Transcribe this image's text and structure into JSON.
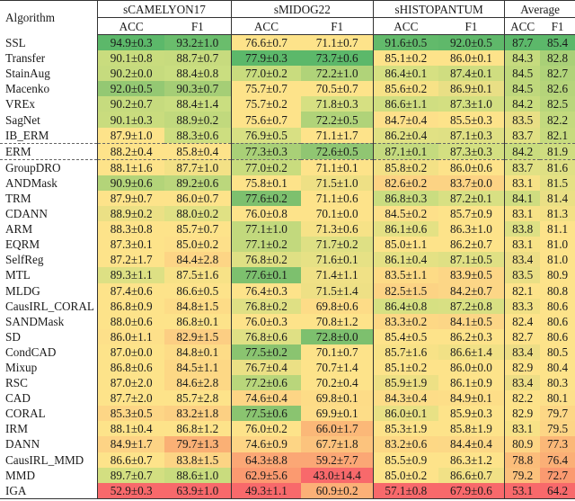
{
  "table": {
    "header": {
      "algorithm": "Algorithm",
      "groups": [
        "sCAMELYON17",
        "sMIDOG22",
        "sHISTOPANTUM",
        "Average"
      ],
      "sub": [
        "ACC",
        "F1",
        "ACC",
        "F1",
        "ACC",
        "F1",
        "ACC",
        "F1"
      ]
    },
    "rows": [
      {
        "name": "SSL",
        "cells": [
          "94.9±0.3",
          "93.2±1.0",
          "76.6±0.7",
          "71.1±0.7",
          "91.6±0.5",
          "92.0±0.5",
          "87.7",
          "85.4"
        ],
        "colors": [
          "#5cb86a",
          "#6abd6c",
          "#fde38a",
          "#fde38a",
          "#62ba6b",
          "#5fb86a",
          "#5cb86a",
          "#5cb86a"
        ]
      },
      {
        "name": "Transfer",
        "cells": [
          "90.1±0.8",
          "88.7±0.7",
          "77.9±0.3",
          "73.7±0.6",
          "85.1±0.2",
          "86.0±0.1",
          "84.3",
          "82.8"
        ],
        "colors": [
          "#c9dc7e",
          "#c7db7e",
          "#5cb86a",
          "#5cb86a",
          "#fde38a",
          "#fde38a",
          "#c6db7e",
          "#a9d077"
        ]
      },
      {
        "name": "StainAug",
        "cells": [
          "90.2±0.0",
          "88.4±0.8",
          "77.0±0.2",
          "72.2±1.0",
          "86.4±0.1",
          "87.4±0.1",
          "84.5",
          "82.7"
        ],
        "colors": [
          "#c6db7e",
          "#cade80",
          "#c9dc7e",
          "#b0d379",
          "#d6e082",
          "#cfdd80",
          "#bfd87c",
          "#b0d379"
        ]
      },
      {
        "name": "Macenko",
        "cells": [
          "92.0±0.5",
          "90.3±0.7",
          "75.7±0.7",
          "70.5±0.7",
          "85.6±0.2",
          "86.9±0.1",
          "84.5",
          "82.6"
        ],
        "colors": [
          "#94c873",
          "#a5ce76",
          "#fde38a",
          "#fde38a",
          "#f7e287",
          "#e9df85",
          "#bfd87c",
          "#b5d47a"
        ]
      },
      {
        "name": "VREx",
        "cells": [
          "90.2±0.7",
          "88.4±1.4",
          "75.7±0.2",
          "71.8±0.3",
          "86.6±1.1",
          "87.3±1.0",
          "84.2",
          "82.5"
        ],
        "colors": [
          "#c6db7e",
          "#cade80",
          "#fde38a",
          "#d6e082",
          "#d0de81",
          "#d3df81",
          "#c9dc7e",
          "#b9d67b"
        ]
      },
      {
        "name": "SagNet",
        "cells": [
          "90.1±0.3",
          "88.9±0.2",
          "75.6±0.7",
          "72.2±0.5",
          "84.7±0.4",
          "85.5±0.3",
          "83.5",
          "82.2"
        ],
        "colors": [
          "#c9dc7e",
          "#c1d97d",
          "#fde38a",
          "#b0d379",
          "#fde08a",
          "#fde38a",
          "#e9df85",
          "#c3da7e"
        ]
      },
      {
        "name": "IB_ERM",
        "cells": [
          "87.9±1.0",
          "88.3±0.6",
          "76.9±0.5",
          "71.1±1.7",
          "86.2±0.4",
          "87.1±0.3",
          "83.7",
          "82.1"
        ],
        "colors": [
          "#fde38a",
          "#cdde80",
          "#d8e083",
          "#fde38a",
          "#e1e184",
          "#dfe084",
          "#e1e184",
          "#c7db7e"
        ]
      },
      {
        "name": "ERM",
        "cells": [
          "88.2±0.4",
          "85.8±0.4",
          "77.3±0.3",
          "72.6±0.5",
          "87.1±0.1",
          "87.3±0.3",
          "84.2",
          "81.9"
        ],
        "colors": [
          "#fde38a",
          "#fde38a",
          "#a9d077",
          "#90c672",
          "#c4da7e",
          "#d3df81",
          "#c9dc7e",
          "#cfdd80"
        ]
      },
      {
        "name": "GroupDRO",
        "cells": [
          "88.1±1.6",
          "87.7±1.0",
          "77.0±0.2",
          "71.1±0.1",
          "85.8±0.2",
          "86.0±0.6",
          "83.7",
          "81.6"
        ],
        "colors": [
          "#fde38a",
          "#f3e186",
          "#c9dc7e",
          "#fde38a",
          "#f3e186",
          "#fde38a",
          "#e1e184",
          "#dfe084"
        ]
      },
      {
        "name": "ANDMask",
        "cells": [
          "90.9±0.6",
          "89.2±0.6",
          "75.8±0.1",
          "71.5±1.0",
          "82.6±0.2",
          "83.7±0.0",
          "83.1",
          "81.5"
        ],
        "colors": [
          "#b3d479",
          "#bbd77c",
          "#fde38a",
          "#eee085",
          "#fcd384",
          "#fcd384",
          "#f7e287",
          "#e5e184"
        ]
      },
      {
        "name": "TRM",
        "cells": [
          "87.9±0.7",
          "86.0±0.7",
          "77.6±0.2",
          "71.1±0.6",
          "86.8±0.3",
          "87.2±0.1",
          "84.1",
          "81.4"
        ],
        "colors": [
          "#fde38a",
          "#fde38a",
          "#7dc06e",
          "#fde38a",
          "#cadd80",
          "#d8e083",
          "#cfdd80",
          "#eae085"
        ]
      },
      {
        "name": "CDANN",
        "cells": [
          "88.9±0.2",
          "88.0±0.2",
          "76.0±0.8",
          "70.1±0.0",
          "84.5±0.2",
          "85.7±0.9",
          "83.1",
          "81.3"
        ],
        "colors": [
          "#ebe085",
          "#e0e184",
          "#fde38a",
          "#fde38a",
          "#fde08a",
          "#fde38a",
          "#f7e287",
          "#f3e186"
        ]
      },
      {
        "name": "ARM",
        "cells": [
          "88.3±0.8",
          "85.7±0.7",
          "77.1±1.0",
          "71.3±0.6",
          "86.1±0.6",
          "86.3±1.0",
          "83.8",
          "81.1"
        ],
        "colors": [
          "#fde38a",
          "#fde38a",
          "#c2d97d",
          "#f6e287",
          "#e4e184",
          "#fde38a",
          "#dde084",
          "#fde38a"
        ]
      },
      {
        "name": "EQRM",
        "cells": [
          "87.3±0.1",
          "85.0±0.2",
          "77.1±0.2",
          "71.7±0.2",
          "85.0±1.1",
          "86.2±0.7",
          "83.1",
          "81.0"
        ],
        "colors": [
          "#fde38a",
          "#fde08a",
          "#c2d97d",
          "#dee084",
          "#fde38a",
          "#fde38a",
          "#f7e287",
          "#fde38a"
        ]
      },
      {
        "name": "SelfReg",
        "cells": [
          "87.2±1.7",
          "84.4±2.8",
          "76.8±0.2",
          "71.6±0.1",
          "86.1±0.4",
          "87.1±0.5",
          "83.4",
          "81.0"
        ],
        "colors": [
          "#fde38a",
          "#fdd585",
          "#dfe084",
          "#e6e185",
          "#e4e184",
          "#dfe084",
          "#edde86",
          "#fde38a"
        ]
      },
      {
        "name": "MTL",
        "cells": [
          "89.3±1.1",
          "87.5±1.6",
          "77.6±0.1",
          "71.4±1.1",
          "83.5±1.1",
          "83.9±0.5",
          "83.5",
          "80.9"
        ],
        "colors": [
          "#dde084",
          "#f7e287",
          "#7dc06e",
          "#f0e186",
          "#fddb86",
          "#fcd686",
          "#e9df85",
          "#fde38a"
        ]
      },
      {
        "name": "MLDG",
        "cells": [
          "87.4±0.6",
          "86.6±0.5",
          "76.4±0.3",
          "71.5±1.4",
          "82.5±1.5",
          "84.2±0.7",
          "82.1",
          "80.8"
        ],
        "colors": [
          "#fde38a",
          "#fde38a",
          "#fde38a",
          "#eee085",
          "#fcd384",
          "#fcd686",
          "#fde38a",
          "#fde38a"
        ]
      },
      {
        "name": "CausIRL_CORAL",
        "cells": [
          "86.8±0.9",
          "84.8±1.5",
          "76.8±0.2",
          "69.8±0.6",
          "86.4±0.8",
          "87.2±0.8",
          "83.3",
          "80.6"
        ],
        "colors": [
          "#fde38a",
          "#fddc87",
          "#dfe084",
          "#fddc87",
          "#d6e082",
          "#d8e083",
          "#f1e186",
          "#fde38a"
        ]
      },
      {
        "name": "SANDMask",
        "cells": [
          "88.0±0.6",
          "86.8±0.1",
          "76.0±0.3",
          "70.8±1.2",
          "83.3±0.2",
          "84.1±0.5",
          "82.4",
          "80.6"
        ],
        "colors": [
          "#fde38a",
          "#fde38a",
          "#fde38a",
          "#fde38a",
          "#fdd885",
          "#fcd686",
          "#fde38a",
          "#fde38a"
        ]
      },
      {
        "name": "SD",
        "cells": [
          "86.0±1.1",
          "82.9±1.5",
          "76.8±0.6",
          "72.8±0.0",
          "85.4±0.5",
          "86.2±0.3",
          "82.7",
          "80.6"
        ],
        "colors": [
          "#fde08a",
          "#fcce83",
          "#dfe084",
          "#7dc06e",
          "#fde38a",
          "#fde38a",
          "#fde38a",
          "#fde38a"
        ]
      },
      {
        "name": "CondCAD",
        "cells": [
          "87.0±0.0",
          "84.8±0.1",
          "77.5±0.2",
          "70.1±0.7",
          "85.7±1.6",
          "86.6±1.4",
          "83.4",
          "80.5"
        ],
        "colors": [
          "#fde38a",
          "#fddc87",
          "#8ac470",
          "#fde38a",
          "#f7e287",
          "#f1e186",
          "#edde86",
          "#fde38a"
        ]
      },
      {
        "name": "Mixup",
        "cells": [
          "86.8±0.6",
          "84.5±1.1",
          "76.7±0.4",
          "70.7±1.4",
          "85.1±0.2",
          "86.0±0.0",
          "82.9",
          "80.4"
        ],
        "colors": [
          "#fde38a",
          "#fdd885",
          "#ebe085",
          "#fde38a",
          "#fde38a",
          "#fde38a",
          "#fde38a",
          "#fde38a"
        ]
      },
      {
        "name": "RSC",
        "cells": [
          "87.0±2.0",
          "84.6±2.8",
          "77.2±0.6",
          "70.2±0.4",
          "85.9±1.9",
          "86.1±0.9",
          "83.4",
          "80.3"
        ],
        "colors": [
          "#fde38a",
          "#fdd885",
          "#b9d67b",
          "#fde38a",
          "#ede085",
          "#fde38a",
          "#edde86",
          "#fde38a"
        ]
      },
      {
        "name": "CAD",
        "cells": [
          "87.7±2.0",
          "85.7±2.8",
          "74.6±0.4",
          "69.8±0.1",
          "84.3±0.4",
          "84.9±0.1",
          "82.2",
          "80.1"
        ],
        "colors": [
          "#fde38a",
          "#fde38a",
          "#fdd585",
          "#fddc87",
          "#fddd88",
          "#fdde88",
          "#fde38a",
          "#fde08a"
        ]
      },
      {
        "name": "CORAL",
        "cells": [
          "85.3±0.5",
          "83.2±1.8",
          "77.5±0.6",
          "69.9±0.1",
          "86.0±0.1",
          "85.9±0.3",
          "82.9",
          "79.7"
        ],
        "colors": [
          "#fdd686",
          "#fcd083",
          "#8ac470",
          "#fddd88",
          "#e8e185",
          "#fde38a",
          "#fde38a",
          "#fdd786"
        ]
      },
      {
        "name": "IRM",
        "cells": [
          "88.1±0.4",
          "86.8±1.2",
          "76.0±0.2",
          "66.0±1.7",
          "85.3±1.9",
          "85.8±1.9",
          "83.1",
          "79.5"
        ],
        "colors": [
          "#fde38a",
          "#fde38a",
          "#fde38a",
          "#fbb878",
          "#fde38a",
          "#fde38a",
          "#f7e287",
          "#fdd585"
        ]
      },
      {
        "name": "DANN",
        "cells": [
          "84.9±1.7",
          "79.7±1.3",
          "74.6±0.9",
          "67.7±1.8",
          "83.2±0.6",
          "84.4±0.4",
          "80.9",
          "77.3"
        ],
        "colors": [
          "#fdd385",
          "#fab075",
          "#fdd585",
          "#fcc37d",
          "#fdd885",
          "#fcd886",
          "#fdd685",
          "#fbb878"
        ]
      },
      {
        "name": "CausIRL_MMD",
        "cells": [
          "86.6±0.7",
          "83.8±1.5",
          "64.3±8.8",
          "59.2±7.7",
          "85.5±0.9",
          "86.3±1.2",
          "78.8",
          "76.4"
        ],
        "colors": [
          "#fde38a",
          "#fcd484",
          "#fba775",
          "#fba775",
          "#fde38a",
          "#fde38a",
          "#fbbd7a",
          "#fbaf76"
        ]
      },
      {
        "name": "MMD",
        "cells": [
          "89.7±0.7",
          "88.6±1.0",
          "62.9±5.6",
          "43.0±14.4",
          "85.0±0.2",
          "86.6±0.7",
          "79.2",
          "72.7"
        ],
        "colors": [
          "#d3df81",
          "#c9dc7e",
          "#fb9a70",
          "#f8696b",
          "#fde38a",
          "#f1e186",
          "#fbc17c",
          "#fb9a70"
        ]
      },
      {
        "name": "IGA",
        "cells": [
          "52.9±0.3",
          "63.9±1.0",
          "49.3±1.1",
          "60.9±0.2",
          "57.1±0.8",
          "67.9±0.6",
          "53.1",
          "64.2"
        ],
        "colors": [
          "#f8696b",
          "#f8696b",
          "#f8696b",
          "#fcb077",
          "#f8696b",
          "#f8696b",
          "#f8696b",
          "#f8696b"
        ]
      }
    ]
  }
}
